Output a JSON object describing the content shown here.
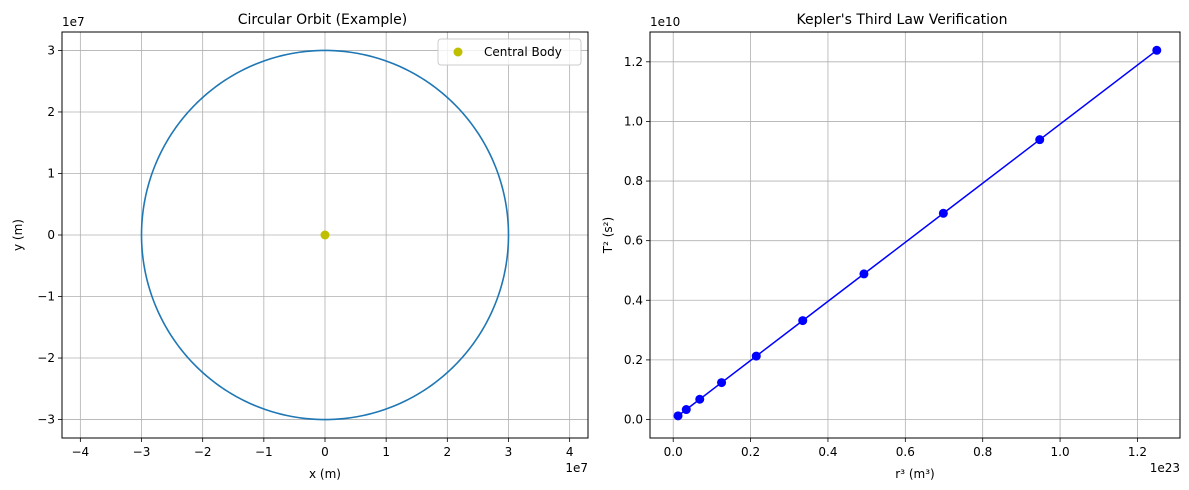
{
  "chart_data": [
    {
      "type": "line",
      "title": "Circular Orbit (Example)",
      "xlabel": "x (m)",
      "ylabel": "y (m)",
      "x_offset_text": "1e7",
      "y_offset_text": "1e7",
      "xlim": [
        -4.3,
        4.3
      ],
      "ylim": [
        -3.3,
        3.3
      ],
      "xticks": [
        -4,
        -3,
        -2,
        -1,
        0,
        1,
        2,
        3,
        4
      ],
      "yticks": [
        -3,
        -2,
        -1,
        0,
        1,
        2,
        3
      ],
      "grid": true,
      "legend_position": "top-right",
      "series": [
        {
          "kind": "circle",
          "center": [
            0,
            0
          ],
          "radius": 3,
          "color": "#1f77b4"
        },
        {
          "name": "Central Body",
          "kind": "point",
          "x": [
            0
          ],
          "y": [
            0
          ],
          "color": "#bfbf00"
        }
      ]
    },
    {
      "type": "line",
      "title": "Kepler's Third Law Verification",
      "xlabel": "r³ (m³)",
      "ylabel": "T² (s²)",
      "x_offset_text": "1e23",
      "y_offset_text": "1e10",
      "xlim": [
        -0.06,
        1.31
      ],
      "ylim": [
        -0.062,
        1.3
      ],
      "xticks": [
        0.0,
        0.2,
        0.4,
        0.6,
        0.8,
        1.0,
        1.2
      ],
      "yticks": [
        0.0,
        0.2,
        0.4,
        0.6,
        0.8,
        1.0,
        1.2
      ],
      "tick_format": "fixed1",
      "grid": true,
      "series": [
        {
          "kind": "line-markers",
          "color": "#0000ff",
          "x": [
            0.0125,
            0.0338,
            0.0686,
            0.125,
            0.2147,
            0.3348,
            0.493,
            0.6983,
            0.9474,
            1.25
          ],
          "y": [
            0.0124,
            0.0335,
            0.068,
            0.1239,
            0.2127,
            0.3318,
            0.4885,
            0.6919,
            0.9388,
            1.2386
          ]
        }
      ]
    }
  ]
}
